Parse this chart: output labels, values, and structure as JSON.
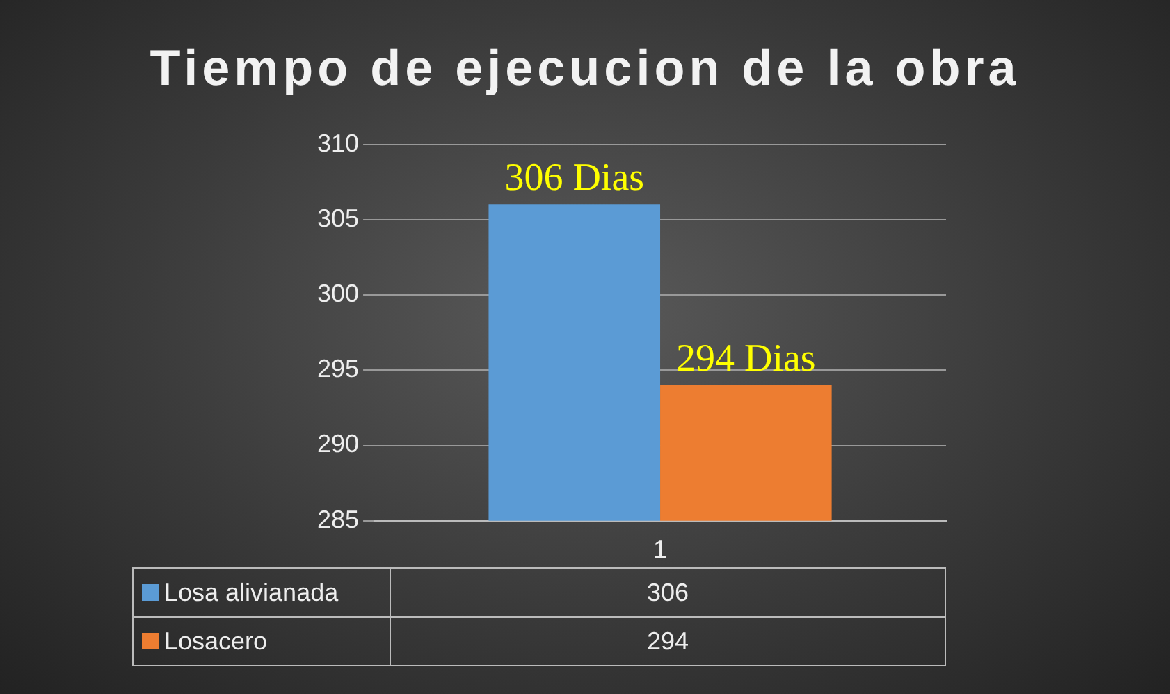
{
  "chart_data": {
    "type": "bar",
    "title": "Tiempo de ejecucion de la obra",
    "categories": [
      "1"
    ],
    "series": [
      {
        "name": "Losa alivianada",
        "color": "#5b9bd5",
        "values": [
          306
        ],
        "value_labels": [
          "306 Dias"
        ]
      },
      {
        "name": "Losacero",
        "color": "#ed7d31",
        "values": [
          294
        ],
        "value_labels": [
          "294 Dias"
        ]
      }
    ],
    "annotations": [
      "306",
      "294"
    ],
    "ylim": [
      285,
      310
    ],
    "yticks": [
      285,
      290,
      295,
      300,
      305,
      310
    ],
    "grid": "y",
    "legend": "bottom"
  }
}
